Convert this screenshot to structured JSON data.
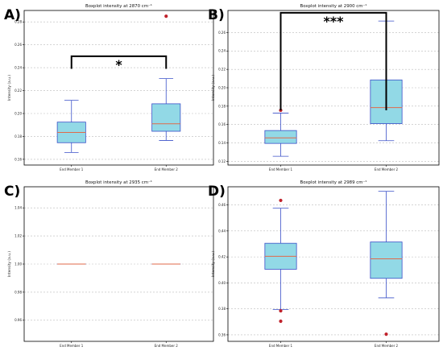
{
  "figure": {
    "panels": [
      {
        "label": "A)",
        "title": "Boxplot intensity at 2870 cm⁻¹",
        "ylabel": "Intensity (a.u.)",
        "significance": "*"
      },
      {
        "label": "B)",
        "title": "Boxplot intensity at 2900 cm⁻¹",
        "ylabel": "Intensity (a.u.)",
        "significance": "***"
      },
      {
        "label": "C)",
        "title": "Boxplot intensity at 2935 cm⁻¹",
        "ylabel": "Intensity (a.u.)",
        "significance": ""
      },
      {
        "label": "D)",
        "title": "Boxplot intensity at 2989 cm⁻¹",
        "ylabel": "Intensity (a.u.)",
        "significance": ""
      }
    ],
    "colors": {
      "box_fill": "#92d9e6",
      "box_edge": "#3a50c8",
      "whisker": "#3a50c8",
      "median": "#e06a4a",
      "outlier": "#c0232c",
      "grid": "#bbbbbb",
      "bracket": "#000000"
    }
  },
  "chart_data": [
    {
      "type": "box",
      "title": "Boxplot intensity at 2870 cm⁻¹",
      "ylabel": "Intensity (a.u.)",
      "categories": [
        "End Member 1",
        "End Member 2"
      ],
      "ylim": [
        0.155,
        0.29
      ],
      "yticks": [
        0.16,
        0.18,
        0.2,
        0.22,
        0.24,
        0.26,
        0.28
      ],
      "grid": true,
      "boxes": [
        {
          "category": "End Member 1",
          "whislo": 0.166,
          "q1": 0.1745,
          "med": 0.1835,
          "q3": 0.1925,
          "whishi": 0.2115,
          "fliers": []
        },
        {
          "category": "End Member 2",
          "whislo": 0.1765,
          "q1": 0.1845,
          "med": 0.191,
          "q3": 0.2085,
          "whishi": 0.2305,
          "fliers": [
            0.285
          ]
        }
      ],
      "significance": {
        "label": "*",
        "y": 0.25,
        "drop_to": 0.239
      }
    },
    {
      "type": "box",
      "title": "Boxplot intensity at 2900 cm⁻¹",
      "ylabel": "Intensity (a.u.)",
      "categories": [
        "End Member 1",
        "End Member 2"
      ],
      "ylim": [
        0.116,
        0.284
      ],
      "yticks": [
        0.12,
        0.14,
        0.16,
        0.18,
        0.2,
        0.22,
        0.24,
        0.26
      ],
      "grid": true,
      "boxes": [
        {
          "category": "End Member 1",
          "whislo": 0.1255,
          "q1": 0.1395,
          "med": 0.1455,
          "q3": 0.1535,
          "whishi": 0.1725,
          "fliers": [
            0.1755
          ]
        },
        {
          "category": "End Member 2",
          "whislo": 0.1425,
          "q1": 0.161,
          "med": 0.1785,
          "q3": 0.2085,
          "whishi": 0.2725,
          "fliers": []
        }
      ],
      "significance": {
        "label": "***",
        "y": 0.2815,
        "drop_to": 0.1755
      }
    },
    {
      "type": "box",
      "title": "Boxplot intensity at 2935 cm⁻¹",
      "ylabel": "Intensity (a.u.)",
      "categories": [
        "End Member 1",
        "End Member 2"
      ],
      "ylim": [
        0.945,
        1.055
      ],
      "yticks": [
        0.96,
        0.98,
        1.0,
        1.02,
        1.04
      ],
      "grid": true,
      "boxes": [
        {
          "category": "End Member 1",
          "whislo": 1.0,
          "q1": 1.0,
          "med": 1.0,
          "q3": 1.0,
          "whishi": 1.0,
          "fliers": []
        },
        {
          "category": "End Member 2",
          "whislo": 1.0,
          "q1": 1.0,
          "med": 1.0,
          "q3": 1.0,
          "whishi": 1.0,
          "fliers": []
        }
      ]
    },
    {
      "type": "box",
      "title": "Boxplot intensity at 2989 cm⁻¹",
      "ylabel": "Intensity (a.u.)",
      "categories": [
        "End Member 1",
        "End Member 2"
      ],
      "ylim": [
        0.355,
        0.474
      ],
      "yticks": [
        0.36,
        0.38,
        0.4,
        0.42,
        0.44,
        0.46
      ],
      "grid": true,
      "boxes": [
        {
          "category": "End Member 1",
          "whislo": 0.3795,
          "q1": 0.4105,
          "med": 0.4205,
          "q3": 0.4305,
          "whishi": 0.4575,
          "fliers": [
            0.4635,
            0.3785,
            0.3705
          ]
        },
        {
          "category": "End Member 2",
          "whislo": 0.3885,
          "q1": 0.4035,
          "med": 0.4185,
          "q3": 0.4315,
          "whishi": 0.4705,
          "fliers": [
            0.3605
          ]
        }
      ]
    }
  ]
}
